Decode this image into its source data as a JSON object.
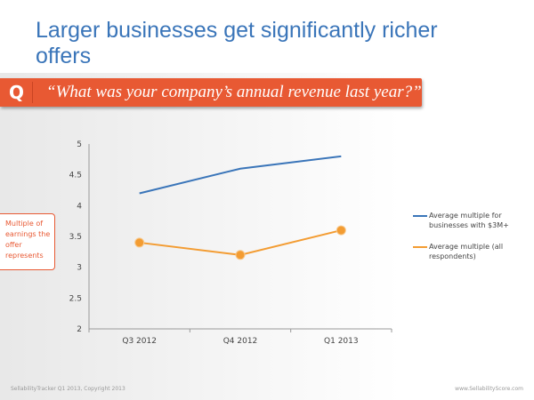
{
  "title": "Larger businesses get significantly richer offers",
  "question": {
    "letter": "Q",
    "text": "“What was your company’s annual revenue last year?”"
  },
  "footer": {
    "left": "SellabilityTracker Q1 2013, Copyright 2013",
    "right": "www.SellabilityScore.com"
  },
  "chart_data": {
    "type": "line",
    "title": "",
    "ylabel": "Multiple of earnings the offer represents",
    "xlabel": "",
    "categories": [
      "Q3 2012",
      "Q4 2012",
      "Q1 2013"
    ],
    "ylim": [
      2,
      5
    ],
    "yticks": [
      "2",
      "2.5",
      "3",
      "3.5",
      "4",
      "4.5",
      "5"
    ],
    "grid": false,
    "legend_position": "right",
    "series": [
      {
        "name": "Average multiple for businesses with $3M+",
        "values": [
          4.2,
          4.6,
          4.8
        ],
        "color": "#3a75b9",
        "markers": false
      },
      {
        "name": "Average multiple (all respondents)",
        "values": [
          3.4,
          3.2,
          3.6
        ],
        "color": "#f39c32",
        "markers": true
      }
    ]
  }
}
